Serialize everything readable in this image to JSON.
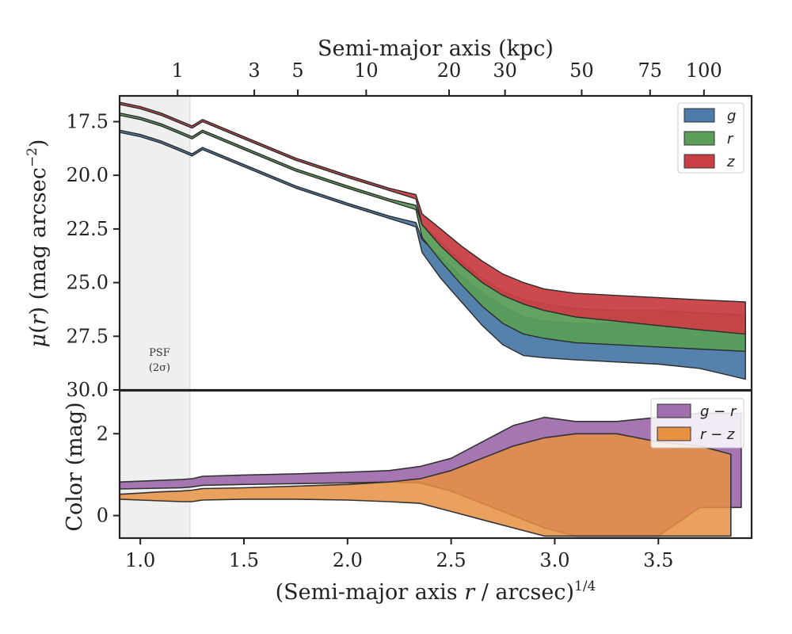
{
  "chart_data": [
    {
      "type": "area",
      "panel": "surface-brightness",
      "xlabel": "(Semi-major axis r / arcsec)^1/4",
      "ylabel": "μ(r) (mag arcsec⁻²)",
      "top_xlabel": "Semi-major axis (kpc)",
      "top_ticks": [
        1,
        3,
        5,
        10,
        20,
        30,
        50,
        75,
        100
      ],
      "top_tick_x_equivalent": [
        1.18,
        1.55,
        1.76,
        2.09,
        2.49,
        2.76,
        3.13,
        3.46,
        3.72
      ],
      "xlim": [
        0.9,
        3.95
      ],
      "xticks": [
        "1.0",
        "1.5",
        "2.0",
        "2.5",
        "3.0",
        "3.5"
      ],
      "ylim": [
        30.0,
        16.3
      ],
      "yticks": [
        "17.5",
        "20.0",
        "22.5",
        "25.0",
        "27.5",
        "30.0"
      ],
      "y_inverted": true,
      "psf_band": {
        "x_range": [
          0.9,
          1.24
        ],
        "label_line1": "PSF",
        "label_line2": "(2σ)"
      },
      "legend": {
        "position": "top-right",
        "entries": [
          "g",
          "r",
          "z"
        ]
      },
      "series": [
        {
          "name": "g",
          "color": "#4c7ba9",
          "x": [
            0.9,
            1.0,
            1.1,
            1.2,
            1.25,
            1.3,
            1.5,
            1.75,
            2.0,
            2.2,
            2.33,
            2.36,
            2.45,
            2.55,
            2.65,
            2.75,
            2.85,
            2.95,
            3.1,
            3.3,
            3.5,
            3.7,
            3.92
          ],
          "y_bright": [
            17.9,
            18.1,
            18.4,
            18.8,
            19.0,
            18.7,
            19.5,
            20.5,
            21.3,
            21.9,
            22.2,
            23.0,
            23.8,
            24.7,
            25.5,
            26.1,
            26.6,
            26.8,
            26.9,
            26.9,
            26.9,
            27.0,
            27.0
          ],
          "y_faint": [
            18.0,
            18.2,
            18.5,
            18.9,
            19.1,
            18.8,
            19.6,
            20.6,
            21.4,
            22.0,
            22.4,
            23.6,
            24.8,
            25.9,
            27.0,
            27.9,
            28.4,
            28.5,
            28.6,
            28.7,
            28.8,
            29.0,
            29.5
          ]
        },
        {
          "name": "r",
          "color": "#5a9e5a",
          "x": [
            0.9,
            1.0,
            1.1,
            1.2,
            1.25,
            1.3,
            1.5,
            1.75,
            2.0,
            2.2,
            2.33,
            2.36,
            2.45,
            2.55,
            2.65,
            2.75,
            2.85,
            2.95,
            3.1,
            3.3,
            3.5,
            3.7,
            3.92
          ],
          "y_bright": [
            17.1,
            17.3,
            17.6,
            18.0,
            18.2,
            17.9,
            18.7,
            19.7,
            20.5,
            21.1,
            21.4,
            22.3,
            23.1,
            24.0,
            24.8,
            25.4,
            25.8,
            26.0,
            26.2,
            26.3,
            26.3,
            26.4,
            26.5
          ],
          "y_faint": [
            17.2,
            17.4,
            17.7,
            18.1,
            18.3,
            18.0,
            18.8,
            19.8,
            20.6,
            21.2,
            21.6,
            22.9,
            24.0,
            25.1,
            26.1,
            26.9,
            27.4,
            27.6,
            27.8,
            27.9,
            28.0,
            28.1,
            28.2
          ]
        },
        {
          "name": "z",
          "color": "#c94044",
          "x": [
            0.9,
            1.0,
            1.1,
            1.2,
            1.25,
            1.3,
            1.5,
            1.75,
            2.0,
            2.2,
            2.33,
            2.36,
            2.45,
            2.55,
            2.65,
            2.75,
            2.85,
            2.95,
            3.1,
            3.3,
            3.5,
            3.7,
            3.92
          ],
          "y_bright": [
            16.6,
            16.8,
            17.1,
            17.5,
            17.7,
            17.4,
            18.2,
            19.2,
            20.0,
            20.6,
            20.9,
            21.8,
            22.5,
            23.3,
            24.0,
            24.6,
            25.0,
            25.3,
            25.5,
            25.6,
            25.7,
            25.8,
            25.9
          ],
          "y_faint": [
            16.7,
            16.9,
            17.2,
            17.6,
            17.8,
            17.5,
            18.3,
            19.3,
            20.1,
            20.7,
            21.1,
            22.3,
            23.3,
            24.2,
            25.0,
            25.6,
            26.0,
            26.3,
            26.6,
            26.8,
            27.0,
            27.2,
            27.4
          ]
        }
      ]
    },
    {
      "type": "area",
      "panel": "color",
      "ylabel": "Color (mag)",
      "xlim": [
        0.9,
        3.95
      ],
      "ylim": [
        -0.55,
        3.05
      ],
      "yticks": [
        "0",
        "2"
      ],
      "legend": {
        "position": "top-right",
        "entries": [
          "g − r",
          "r − z"
        ]
      },
      "series": [
        {
          "name": "g − r",
          "color": "#a06fae",
          "x": [
            0.9,
            1.0,
            1.1,
            1.2,
            1.25,
            1.3,
            1.5,
            1.75,
            2.0,
            2.2,
            2.35,
            2.5,
            2.65,
            2.8,
            2.95,
            3.1,
            3.3,
            3.5,
            3.7,
            3.9
          ],
          "y_upper": [
            0.82,
            0.84,
            0.86,
            0.88,
            0.9,
            0.96,
            0.99,
            1.02,
            1.06,
            1.1,
            1.2,
            1.4,
            1.8,
            2.2,
            2.4,
            2.3,
            2.3,
            2.4,
            2.5,
            2.5
          ],
          "y_lower": [
            0.65,
            0.66,
            0.67,
            0.68,
            0.7,
            0.74,
            0.76,
            0.78,
            0.8,
            0.82,
            0.8,
            0.6,
            0.3,
            0.0,
            -0.3,
            -0.5,
            -0.5,
            -0.5,
            0.2,
            0.2
          ]
        },
        {
          "name": "r − z",
          "color": "#e89142",
          "x": [
            0.9,
            1.0,
            1.1,
            1.2,
            1.25,
            1.3,
            1.5,
            1.75,
            2.0,
            2.2,
            2.35,
            2.5,
            2.65,
            2.8,
            2.95,
            3.1,
            3.3,
            3.5,
            3.7,
            3.85
          ],
          "y_upper": [
            0.52,
            0.55,
            0.58,
            0.6,
            0.62,
            0.66,
            0.68,
            0.72,
            0.76,
            0.82,
            0.9,
            1.1,
            1.4,
            1.7,
            1.9,
            2.0,
            2.0,
            1.8,
            1.7,
            1.5
          ],
          "y_lower": [
            0.4,
            0.38,
            0.36,
            0.34,
            0.34,
            0.38,
            0.4,
            0.4,
            0.38,
            0.34,
            0.3,
            0.1,
            -0.1,
            -0.3,
            -0.5,
            -0.5,
            -0.5,
            -0.5,
            -0.5,
            -0.5
          ]
        }
      ]
    }
  ]
}
